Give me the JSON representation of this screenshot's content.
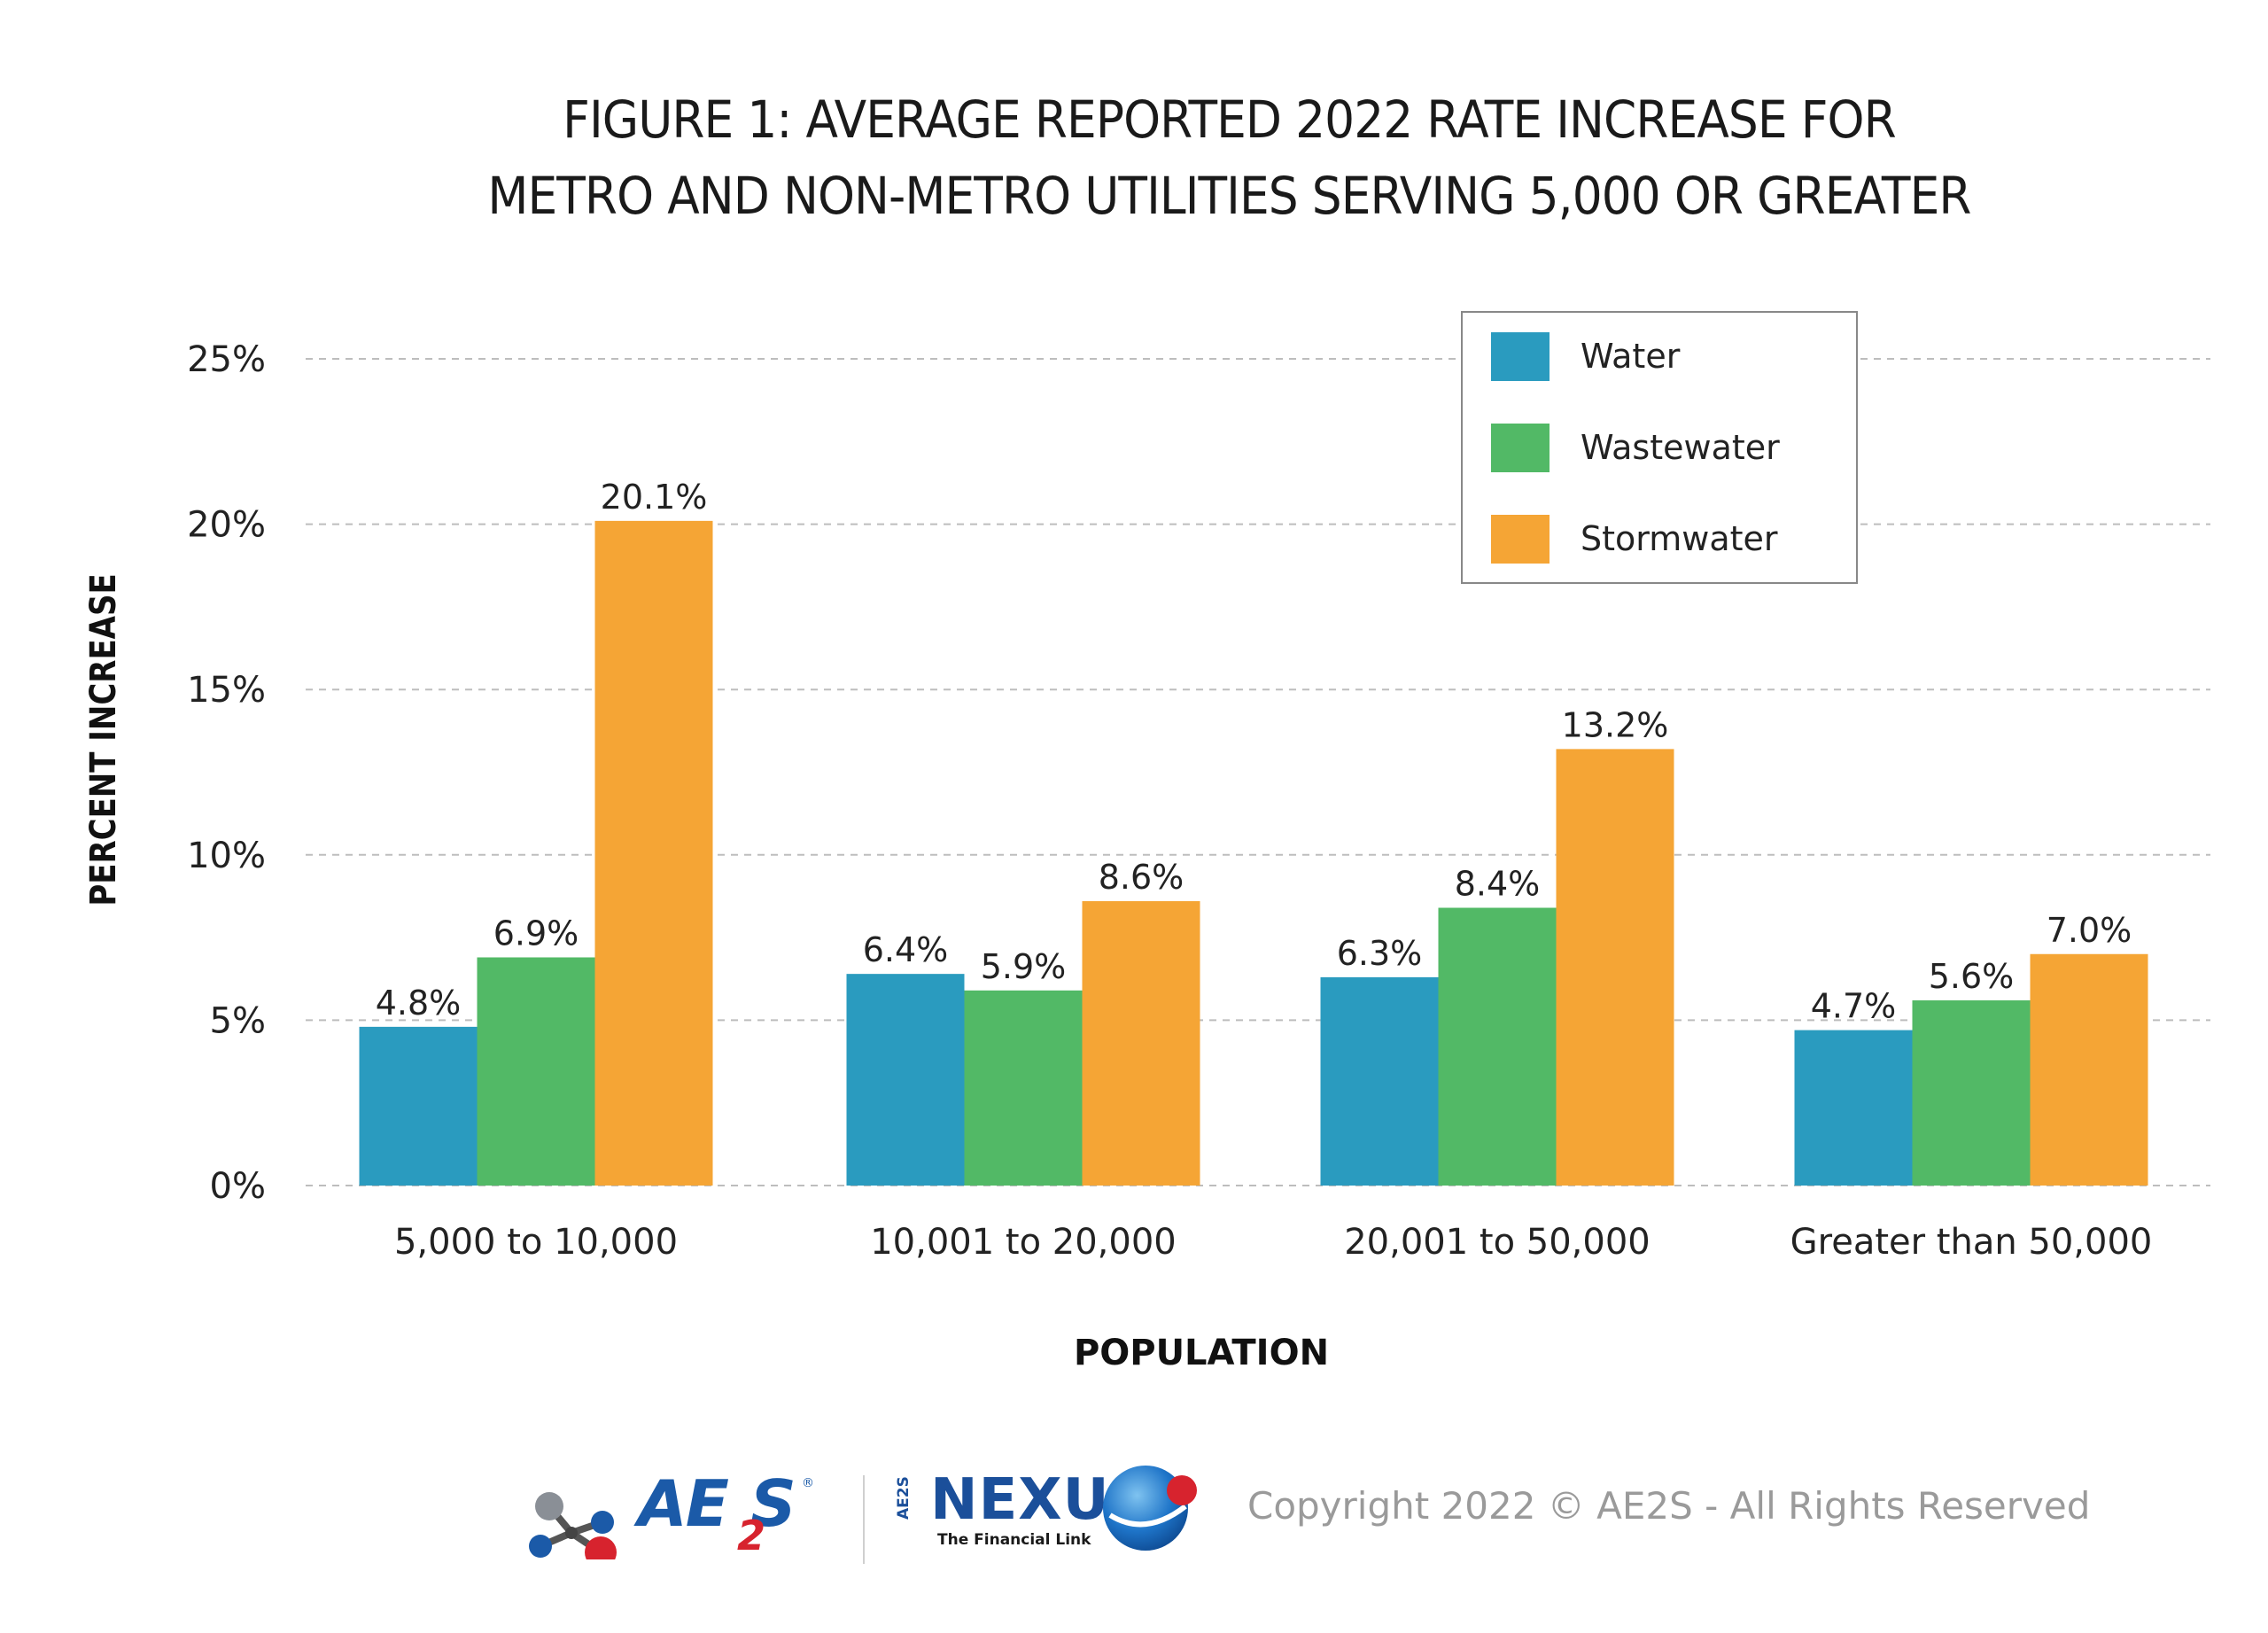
{
  "chart_data": {
    "type": "bar",
    "title_lines": [
      "FIGURE 1: AVERAGE REPORTED 2022 RATE INCREASE FOR",
      "METRO AND NON-METRO UTILITIES SERVING 5,000 OR GREATER"
    ],
    "xlabel": "POPULATION",
    "ylabel": "PERCENT INCREASE",
    "categories": [
      "5,000 to 10,000",
      "10,001 to 20,000",
      "20,001 to 50,000",
      "Greater than 50,000"
    ],
    "series": [
      {
        "name": "Water",
        "color": "#2a9bbf",
        "values": [
          4.8,
          6.4,
          6.3,
          4.7
        ],
        "labels": [
          "4.8%",
          "6.4%",
          "6.3%",
          "4.7%"
        ]
      },
      {
        "name": "Wastewater",
        "color": "#52b966",
        "values": [
          6.9,
          5.9,
          8.4,
          5.6
        ],
        "labels": [
          "6.9%",
          "5.9%",
          "8.4%",
          "5.6%"
        ]
      },
      {
        "name": "Stormwater",
        "color": "#f5a535",
        "values": [
          20.1,
          8.6,
          13.2,
          7.0
        ],
        "labels": [
          "20.1%",
          "8.6%",
          "13.2%",
          "7.0%"
        ]
      }
    ],
    "ylim": [
      0,
      25
    ],
    "yticks": [
      0,
      5,
      10,
      15,
      20,
      25
    ],
    "ytick_labels": [
      "0%",
      "5%",
      "10%",
      "15%",
      "20%",
      "25%"
    ],
    "grid": "dashed horizontal",
    "legend_position": "top-right"
  },
  "footer": {
    "copyright": "Copyright 2022 © AE2S - All Rights Reserved",
    "logo_ae2s": {
      "main": "AE",
      "sub": "2",
      "tail": "S",
      "reg": "®"
    },
    "logo_nexus": {
      "main": "NEXUS",
      "tagline": "The Financial Link",
      "side": "AE2S"
    }
  }
}
